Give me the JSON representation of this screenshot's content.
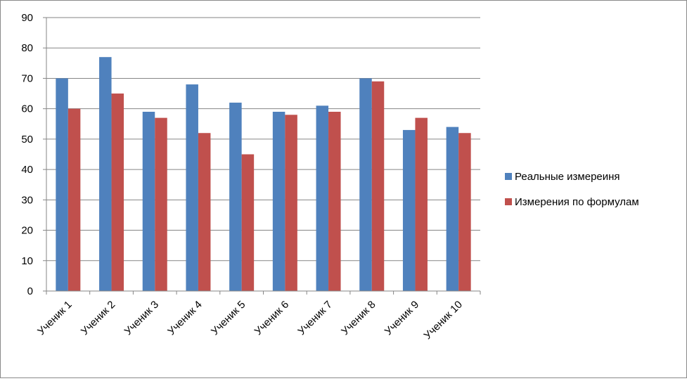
{
  "chart_data": {
    "type": "bar",
    "categories": [
      "Ученик 1",
      "Ученик 2",
      "Ученик 3",
      "Ученик 4",
      "Ученик 5",
      "Ученик 6",
      "Ученик 7",
      "Ученик 8",
      "Ученик 9",
      "Ученик 10"
    ],
    "series": [
      {
        "name": "Реальные измереиня",
        "color": "#4f81bd",
        "values": [
          70,
          77,
          59,
          68,
          62,
          59,
          61,
          70,
          53,
          54
        ]
      },
      {
        "name": "Измерения по формулам",
        "color": "#c0504d",
        "values": [
          60,
          65,
          57,
          52,
          45,
          58,
          59,
          69,
          57,
          52
        ]
      }
    ],
    "title": "",
    "xlabel": "",
    "ylabel": "",
    "ylim": [
      0,
      90
    ],
    "yticks": [
      0,
      10,
      20,
      30,
      40,
      50,
      60,
      70,
      80,
      90
    ],
    "grid": true,
    "legend_position": "right"
  }
}
